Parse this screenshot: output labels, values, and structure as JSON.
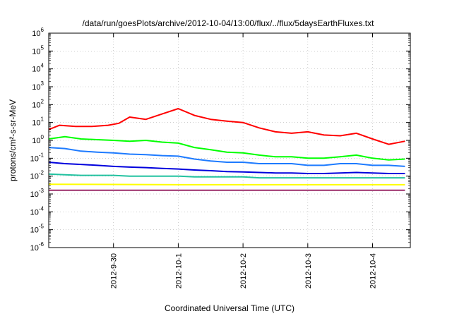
{
  "chart_data": {
    "type": "line",
    "title": "/data/run/goesPlots/archive/2012-10-04/13:00/flux/../flux/5daysEarthFluxes.txt",
    "xlabel": "Coordinated Universal Time (UTC)",
    "ylabel": "protons/cm²-s-sr-MeV",
    "y_scale": "log",
    "ylim": [
      1e-06,
      1000000.0
    ],
    "y_ticks": [
      {
        "value": 1e-06,
        "base": "10",
        "exp": "-6"
      },
      {
        "value": 1e-05,
        "base": "10",
        "exp": "-5"
      },
      {
        "value": 0.0001,
        "base": "10",
        "exp": "-4"
      },
      {
        "value": 0.001,
        "base": "10",
        "exp": "-3"
      },
      {
        "value": 0.01,
        "base": "10",
        "exp": "-2"
      },
      {
        "value": 0.1,
        "base": "10",
        "exp": "-1"
      },
      {
        "value": 1,
        "base": "10",
        "exp": "0"
      },
      {
        "value": 10,
        "base": "10",
        "exp": "1"
      },
      {
        "value": 100,
        "base": "10",
        "exp": "2"
      },
      {
        "value": 1000.0,
        "base": "10",
        "exp": "3"
      },
      {
        "value": 10000.0,
        "base": "10",
        "exp": "4"
      },
      {
        "value": 100000.0,
        "base": "10",
        "exp": "5"
      },
      {
        "value": 1000000.0,
        "base": "10",
        "exp": "6"
      }
    ],
    "xlim": [
      "2012-09-29T00:00",
      "2012-10-04T14:00"
    ],
    "x_ticks": [
      {
        "x": "2012-09-30T00:00",
        "label": "2012-9-30"
      },
      {
        "x": "2012-10-01T00:00",
        "label": "2012-10-1"
      },
      {
        "x": "2012-10-02T00:00",
        "label": "2012-10-2"
      },
      {
        "x": "2012-10-03T00:00",
        "label": "2012-10-3"
      },
      {
        "x": "2012-10-04T00:00",
        "label": "2012-10-4"
      }
    ],
    "grid": true,
    "legend": "none",
    "series": [
      {
        "color": "#ff0000",
        "x": [
          "2012-09-29T00:00",
          "2012-09-29T04:00",
          "2012-09-29T10:00",
          "2012-09-29T16:00",
          "2012-09-29T22:00",
          "2012-09-30T02:00",
          "2012-09-30T06:00",
          "2012-09-30T12:00",
          "2012-09-30T18:00",
          "2012-10-01T00:00",
          "2012-10-01T06:00",
          "2012-10-01T12:00",
          "2012-10-01T18:00",
          "2012-10-02T00:00",
          "2012-10-02T06:00",
          "2012-10-02T12:00",
          "2012-10-02T18:00",
          "2012-10-03T00:00",
          "2012-10-03T06:00",
          "2012-10-03T12:00",
          "2012-10-03T18:00",
          "2012-10-04T00:00",
          "2012-10-04T06:00",
          "2012-10-04T12:00"
        ],
        "values": [
          4,
          7,
          6,
          6,
          7,
          9,
          20,
          15,
          30,
          60,
          25,
          15,
          12,
          10,
          5,
          3,
          2.5,
          3,
          2,
          1.8,
          2.5,
          1.2,
          0.6,
          0.9
        ]
      },
      {
        "color": "#00ff00",
        "x": [
          "2012-09-29T00:00",
          "2012-09-29T06:00",
          "2012-09-29T12:00",
          "2012-09-29T18:00",
          "2012-09-30T00:00",
          "2012-09-30T06:00",
          "2012-09-30T12:00",
          "2012-09-30T18:00",
          "2012-10-01T00:00",
          "2012-10-01T06:00",
          "2012-10-01T12:00",
          "2012-10-01T18:00",
          "2012-10-02T00:00",
          "2012-10-02T06:00",
          "2012-10-02T12:00",
          "2012-10-02T18:00",
          "2012-10-03T00:00",
          "2012-10-03T06:00",
          "2012-10-03T12:00",
          "2012-10-03T18:00",
          "2012-10-04T00:00",
          "2012-10-04T06:00",
          "2012-10-04T12:00"
        ],
        "values": [
          1.2,
          1.6,
          1.2,
          1.1,
          1.0,
          0.9,
          1.0,
          0.8,
          0.7,
          0.4,
          0.3,
          0.22,
          0.2,
          0.15,
          0.12,
          0.12,
          0.1,
          0.1,
          0.12,
          0.15,
          0.1,
          0.08,
          0.09
        ]
      },
      {
        "color": "#1e7bff",
        "x": [
          "2012-09-29T00:00",
          "2012-09-29T06:00",
          "2012-09-29T12:00",
          "2012-09-29T18:00",
          "2012-09-30T00:00",
          "2012-09-30T06:00",
          "2012-09-30T12:00",
          "2012-09-30T18:00",
          "2012-10-01T00:00",
          "2012-10-01T06:00",
          "2012-10-01T12:00",
          "2012-10-01T18:00",
          "2012-10-02T00:00",
          "2012-10-02T06:00",
          "2012-10-02T12:00",
          "2012-10-02T18:00",
          "2012-10-03T00:00",
          "2012-10-03T06:00",
          "2012-10-03T12:00",
          "2012-10-03T18:00",
          "2012-10-04T00:00",
          "2012-10-04T06:00",
          "2012-10-04T12:00"
        ],
        "values": [
          0.4,
          0.35,
          0.25,
          0.22,
          0.2,
          0.17,
          0.16,
          0.14,
          0.13,
          0.09,
          0.07,
          0.06,
          0.06,
          0.05,
          0.05,
          0.05,
          0.04,
          0.04,
          0.05,
          0.05,
          0.04,
          0.04,
          0.035
        ]
      },
      {
        "color": "#0000dd",
        "x": [
          "2012-09-29T00:00",
          "2012-09-29T06:00",
          "2012-09-29T12:00",
          "2012-09-29T18:00",
          "2012-09-30T00:00",
          "2012-09-30T06:00",
          "2012-09-30T12:00",
          "2012-09-30T18:00",
          "2012-10-01T00:00",
          "2012-10-01T06:00",
          "2012-10-01T12:00",
          "2012-10-01T18:00",
          "2012-10-02T00:00",
          "2012-10-02T06:00",
          "2012-10-02T12:00",
          "2012-10-02T18:00",
          "2012-10-03T00:00",
          "2012-10-03T06:00",
          "2012-10-03T12:00",
          "2012-10-03T18:00",
          "2012-10-04T00:00",
          "2012-10-04T06:00",
          "2012-10-04T12:00"
        ],
        "values": [
          0.06,
          0.05,
          0.045,
          0.04,
          0.035,
          0.032,
          0.03,
          0.027,
          0.025,
          0.022,
          0.02,
          0.018,
          0.017,
          0.016,
          0.015,
          0.015,
          0.014,
          0.014,
          0.015,
          0.016,
          0.015,
          0.014,
          0.014
        ]
      },
      {
        "color": "#22c2a0",
        "x": [
          "2012-09-29T00:00",
          "2012-09-29T06:00",
          "2012-09-29T12:00",
          "2012-09-29T18:00",
          "2012-09-30T00:00",
          "2012-09-30T06:00",
          "2012-09-30T12:00",
          "2012-09-30T18:00",
          "2012-10-01T00:00",
          "2012-10-01T06:00",
          "2012-10-01T12:00",
          "2012-10-01T18:00",
          "2012-10-02T00:00",
          "2012-10-02T06:00",
          "2012-10-02T12:00",
          "2012-10-02T18:00",
          "2012-10-03T00:00",
          "2012-10-03T06:00",
          "2012-10-03T12:00",
          "2012-10-03T18:00",
          "2012-10-04T00:00",
          "2012-10-04T06:00",
          "2012-10-04T12:00"
        ],
        "values": [
          0.013,
          0.012,
          0.011,
          0.011,
          0.011,
          0.01,
          0.01,
          0.01,
          0.01,
          0.009,
          0.009,
          0.009,
          0.009,
          0.008,
          0.008,
          0.008,
          0.008,
          0.008,
          0.008,
          0.008,
          0.008,
          0.008,
          0.008
        ]
      },
      {
        "color": "#ffff00",
        "x": [
          "2012-09-29T00:00",
          "2012-09-30T00:00",
          "2012-10-01T00:00",
          "2012-10-02T00:00",
          "2012-10-03T00:00",
          "2012-10-04T00:00",
          "2012-10-04T12:00"
        ],
        "values": [
          0.0035,
          0.0034,
          0.0033,
          0.0033,
          0.0033,
          0.0033,
          0.0033
        ]
      },
      {
        "color": "#9b2d6a",
        "x": [
          "2012-09-29T00:00",
          "2012-09-30T00:00",
          "2012-10-01T00:00",
          "2012-10-02T00:00",
          "2012-10-03T00:00",
          "2012-10-04T00:00",
          "2012-10-04T12:00"
        ],
        "values": [
          0.0016,
          0.0016,
          0.0016,
          0.0016,
          0.0016,
          0.0016,
          0.0016
        ]
      }
    ]
  }
}
